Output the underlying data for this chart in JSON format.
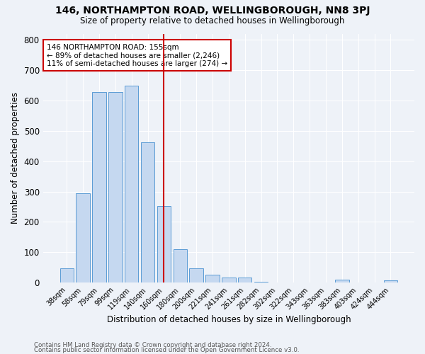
{
  "title": "146, NORTHAMPTON ROAD, WELLINGBOROUGH, NN8 3PJ",
  "subtitle": "Size of property relative to detached houses in Wellingborough",
  "xlabel": "Distribution of detached houses by size in Wellingborough",
  "ylabel": "Number of detached properties",
  "bar_labels": [
    "38sqm",
    "58sqm",
    "79sqm",
    "99sqm",
    "119sqm",
    "140sqm",
    "160sqm",
    "180sqm",
    "200sqm",
    "221sqm",
    "241sqm",
    "261sqm",
    "282sqm",
    "302sqm",
    "322sqm",
    "343sqm",
    "363sqm",
    "383sqm",
    "403sqm",
    "424sqm",
    "444sqm"
  ],
  "bar_values": [
    47,
    294,
    627,
    627,
    648,
    461,
    252,
    110,
    48,
    25,
    17,
    16,
    2,
    1,
    1,
    1,
    0,
    9,
    1,
    0,
    8
  ],
  "bar_color": "#c5d8f0",
  "bar_edge_color": "#5b9bd5",
  "vline_x": 6.0,
  "vline_color": "#cc0000",
  "annotation_lines": [
    "146 NORTHAMPTON ROAD: 155sqm",
    "← 89% of detached houses are smaller (2,246)",
    "11% of semi-detached houses are larger (274) →"
  ],
  "annotation_box_color": "#cc0000",
  "ylim": [
    0,
    820
  ],
  "yticks": [
    0,
    100,
    200,
    300,
    400,
    500,
    600,
    700,
    800
  ],
  "footer1": "Contains HM Land Registry data © Crown copyright and database right 2024.",
  "footer2": "Contains public sector information licensed under the Open Government Licence v3.0.",
  "bg_color": "#eef2f8",
  "plot_bg_color": "#eef2f8"
}
